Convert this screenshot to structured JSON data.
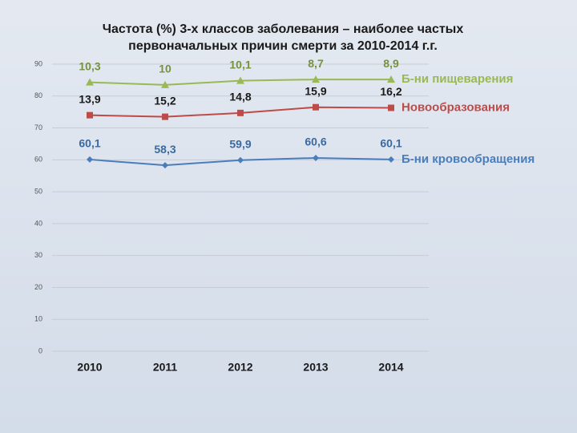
{
  "chart_data": {
    "type": "line",
    "stacked": true,
    "title": [
      "Частота (%) 3-х  классов заболевания – наиболее частых",
      "первоначальных причин смерти за 2010-2014 г.г."
    ],
    "categories": [
      "2010",
      "2011",
      "2012",
      "2013",
      "2014"
    ],
    "series": [
      {
        "name": "Б-ни кровообращения",
        "color": "#4a7ebb",
        "label_color": "#3b6aa0",
        "marker": "diamond",
        "values": [
          60.1,
          58.3,
          59.9,
          60.6,
          60.1
        ],
        "value_labels": [
          "60,1",
          "58,3",
          "59,9",
          "60,6",
          "60,1"
        ]
      },
      {
        "name": "Новообразования",
        "color": "#be4b48",
        "label_color": "#1a1a1a",
        "marker": "square",
        "values": [
          13.9,
          15.2,
          14.8,
          15.9,
          16.2
        ],
        "value_labels": [
          "13,9",
          "15,2",
          "14,8",
          "15,9",
          "16,2"
        ]
      },
      {
        "name": "Б-ни пищеварения",
        "color": "#98b954",
        "label_color": "#76933c",
        "marker": "triangle",
        "values": [
          10.3,
          10,
          10.1,
          8.7,
          8.9
        ],
        "value_labels": [
          "10,3",
          "10",
          "10,1",
          "8,7",
          "8,9"
        ]
      }
    ],
    "ylim": [
      0,
      90
    ],
    "yticks": [
      0,
      10,
      20,
      30,
      40,
      50,
      60,
      70,
      80,
      90
    ],
    "grid": true
  }
}
